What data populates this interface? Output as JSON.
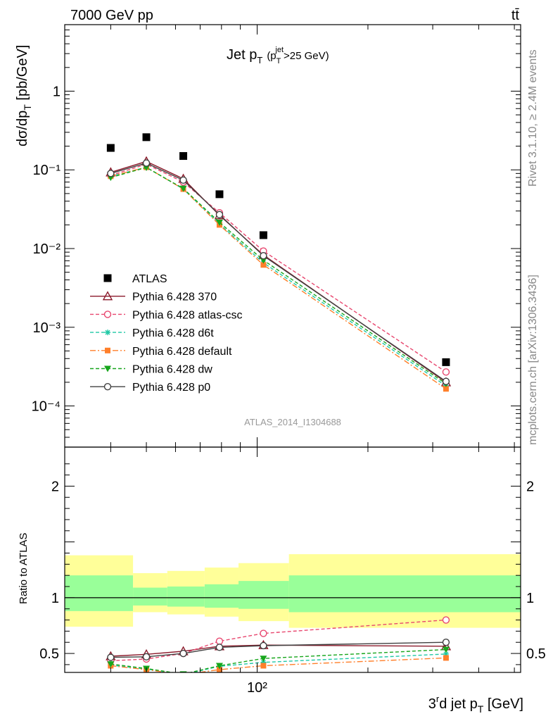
{
  "header": {
    "left": "7000 GeV pp",
    "right": "tt̄",
    "side_top": "Rivet 3.1.10, ≥ 2.4M events",
    "side_bottom": "mcplots.cern.ch [arXiv:1306.3436]"
  },
  "colors": {
    "atlas": "#000000",
    "p370": "#8b1a2b",
    "atlas_csc": "#e8476f",
    "d6t": "#1fc8a5",
    "default": "#ff7f2a",
    "dw": "#17a61c",
    "p0": "#404040",
    "band_outer": "#ffff99",
    "band_inner": "#99ff99"
  },
  "chart_data": [
    {
      "type": "line",
      "title": "Jet p_T (p_T^jet>25 GeV)",
      "title_parts": {
        "main": "Jet p",
        "sub": "T",
        "paren_open": "(p",
        "sub2": "T",
        "sup": "jet",
        "rest": ">25 GeV)"
      },
      "ylabel": "dσ/dp_T [pb/GeV]",
      "ylabel_parts": {
        "main": "dσ/dp",
        "sub": "T",
        "rest": " [pb/GeV]"
      },
      "xscale": "log",
      "yscale": "log",
      "xlim": [
        30,
        520
      ],
      "ylim": [
        3e-05,
        7
      ],
      "ytick_labels": [
        "10⁻⁴",
        "10⁻³",
        "10⁻²",
        "10⁻¹",
        "1"
      ],
      "annotation": "ATLAS_2014_I1304688",
      "legend_position": "lower-left",
      "series": [
        {
          "name": "ATLAS",
          "marker": "square",
          "x": [
            40,
            50,
            63,
            79,
            104,
            326
          ],
          "y": [
            0.19,
            0.26,
            0.15,
            0.049,
            0.0148,
            0.00036
          ]
        },
        {
          "name": "Pythia 6.428 370",
          "marker": "triangle-open",
          "line": "solid",
          "x": [
            40,
            50,
            63,
            79,
            104,
            326
          ],
          "y": [
            0.093,
            0.128,
            0.077,
            0.0265,
            0.0083,
            0.0002
          ]
        },
        {
          "name": "Pythia 6.428 atlas-csc",
          "marker": "circle-open",
          "line": "dashed",
          "x": [
            40,
            50,
            63,
            79,
            104,
            326
          ],
          "y": [
            0.085,
            0.118,
            0.07,
            0.0285,
            0.0093,
            0.00027
          ]
        },
        {
          "name": "Pythia 6.428 d6t",
          "marker": "star",
          "line": "dashed",
          "x": [
            40,
            50,
            63,
            79,
            104,
            326
          ],
          "y": [
            0.083,
            0.108,
            0.057,
            0.0205,
            0.0066,
            0.00018
          ]
        },
        {
          "name": "Pythia 6.428 default",
          "marker": "square",
          "line": "dashdot",
          "x": [
            40,
            50,
            63,
            79,
            104,
            326
          ],
          "y": [
            0.083,
            0.108,
            0.057,
            0.02,
            0.0062,
            0.000165
          ]
        },
        {
          "name": "Pythia 6.428 dw",
          "marker": "triangle-down",
          "line": "dashed",
          "x": [
            40,
            50,
            63,
            79,
            104,
            326
          ],
          "y": [
            0.08,
            0.107,
            0.058,
            0.0215,
            0.0071,
            0.000192
          ]
        },
        {
          "name": "Pythia 6.428 p0",
          "marker": "circle-open",
          "line": "solid",
          "x": [
            40,
            50,
            63,
            79,
            104,
            326
          ],
          "y": [
            0.09,
            0.122,
            0.074,
            0.027,
            0.0081,
            0.000205
          ]
        }
      ]
    },
    {
      "type": "line",
      "ylabel": "Ratio to ATLAS",
      "xlabel": "3^rd jet p_T [GeV]",
      "xlabel_parts": {
        "a": "3",
        "sup": "r",
        "b": "d jet p",
        "sub": "T",
        "c": " [GeV]"
      },
      "xscale": "log",
      "xlim": [
        30,
        520
      ],
      "ylim": [
        0.33,
        2.35
      ],
      "yticks": [
        0.5,
        1,
        2
      ],
      "ytick_labels": [
        "0.5",
        "1",
        "2"
      ],
      "xtick_label": "10²",
      "bands": [
        {
          "x0": 30,
          "x1": 46,
          "inner": [
            0.88,
            1.2
          ],
          "outer": [
            0.74,
            1.38
          ]
        },
        {
          "x0": 46,
          "x1": 57,
          "inner": [
            0.93,
            1.09
          ],
          "outer": [
            0.87,
            1.22
          ]
        },
        {
          "x0": 57,
          "x1": 72,
          "inner": [
            0.92,
            1.1
          ],
          "outer": [
            0.85,
            1.24
          ]
        },
        {
          "x0": 72,
          "x1": 89,
          "inner": [
            0.91,
            1.12
          ],
          "outer": [
            0.83,
            1.27
          ]
        },
        {
          "x0": 89,
          "x1": 122,
          "inner": [
            0.9,
            1.15
          ],
          "outer": [
            0.79,
            1.31
          ]
        },
        {
          "x0": 122,
          "x1": 520,
          "inner": [
            0.87,
            1.2
          ],
          "outer": [
            0.73,
            1.39
          ]
        }
      ],
      "series": [
        {
          "name": "Pythia 6.428 370",
          "x": [
            40,
            50,
            63,
            79,
            104,
            326
          ],
          "y": [
            0.475,
            0.492,
            0.52,
            0.565,
            0.575,
            0.565
          ]
        },
        {
          "name": "Pythia 6.428 atlas-csc",
          "x": [
            40,
            50,
            63,
            79,
            104,
            326
          ],
          "y": [
            0.435,
            0.45,
            0.5,
            0.61,
            0.68,
            0.8
          ]
        },
        {
          "name": "Pythia 6.428 d6t",
          "x": [
            40,
            50,
            63,
            79,
            104,
            326
          ],
          "y": [
            0.395,
            0.36,
            0.31,
            0.385,
            0.42,
            0.495
          ]
        },
        {
          "name": "Pythia 6.428 default",
          "x": [
            40,
            50,
            63,
            79,
            104,
            326
          ],
          "y": [
            0.39,
            0.355,
            0.31,
            0.355,
            0.39,
            0.46
          ]
        },
        {
          "name": "Pythia 6.428 dw",
          "x": [
            40,
            50,
            63,
            79,
            104,
            326
          ],
          "y": [
            0.405,
            0.365,
            0.315,
            0.39,
            0.455,
            0.535
          ]
        },
        {
          "name": "Pythia 6.428 p0",
          "x": [
            40,
            50,
            63,
            79,
            104,
            326
          ],
          "y": [
            0.465,
            0.47,
            0.5,
            0.555,
            0.57,
            0.6
          ]
        }
      ]
    }
  ]
}
